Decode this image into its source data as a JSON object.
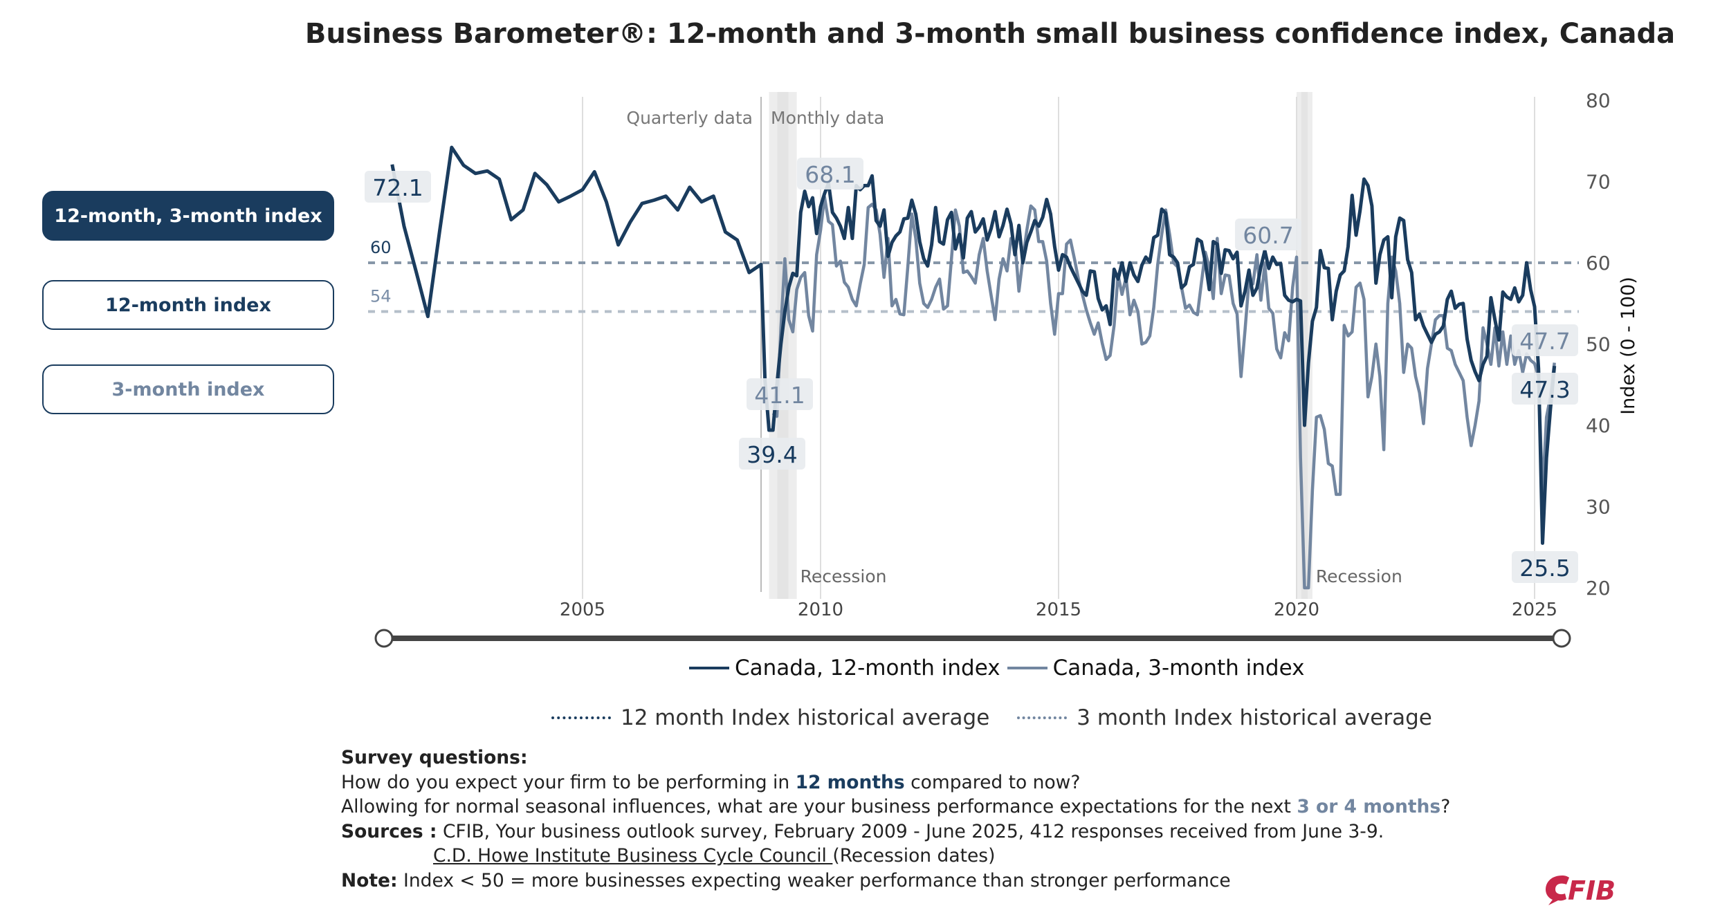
{
  "title": "Business Barometer®: 12-month and 3-month small business confidence index, Canada",
  "buttons": [
    {
      "label": "12-month, 3-month index",
      "active": true
    },
    {
      "label": "12-month index",
      "active": false
    },
    {
      "label": "3-month index",
      "active": false
    }
  ],
  "colors": {
    "dark": "#1a3c5e",
    "light": "#7286a0",
    "label_bg": "#e8ebee",
    "logo": "#c8284a"
  },
  "chart_data": {
    "type": "line",
    "ylabel": "Index (0 - 100)",
    "ylim": [
      20,
      80
    ],
    "yticks": [
      "80",
      "70",
      "60",
      "50",
      "40",
      "30",
      "20"
    ],
    "xticks": [
      "2005",
      "2010",
      "2015",
      "2020",
      "2025"
    ],
    "grid": "vertical",
    "section_labels": {
      "quarterly": "Quarterly data",
      "monthly": "Monthly data",
      "divider": "2008-10"
    },
    "recessions": [
      {
        "label": "Recession",
        "from": "2008-12",
        "to": "2009-07"
      },
      {
        "label": "Recession",
        "from": "2020-01",
        "to": "2020-05"
      }
    ],
    "averages": [
      {
        "name": "12 month Index historical average",
        "value": 60,
        "label": "60"
      },
      {
        "name": "3 month Index historical average",
        "value": 54,
        "label": "54"
      }
    ],
    "series": [
      {
        "name": "Canada, 12-month index",
        "quarterly": {
          "2001": [
            72.1,
            64.5,
            59,
            53.4
          ],
          "2002": [
            64,
            74.2,
            72,
            71
          ],
          "2003": [
            71.3,
            70.3,
            65.3,
            66.5
          ],
          "2004": [
            71,
            69.6,
            67.5,
            68.2
          ],
          "2005": [
            69,
            71.2,
            67.5,
            62.2
          ],
          "2006": [
            65,
            67.3,
            67.7,
            68.2
          ],
          "2007": [
            66.5,
            69.3,
            67.5,
            68.2
          ],
          "2008": [
            63.8,
            62.8,
            58.8,
            59.8
          ]
        },
        "monthly": {
          "2008": [
            null,
            null,
            null,
            null,
            null,
            null,
            null,
            null,
            null,
            null,
            45.5,
            39.4
          ],
          "2009": [
            39.4,
            45,
            50,
            54,
            57,
            58.7,
            58.4,
            66.2,
            68.8,
            66.9,
            68.0,
            63.6
          ],
          "2010": [
            66.9,
            68.5,
            69.8,
            66.2,
            65.5,
            64.5,
            63.0,
            66.8,
            63.0,
            69.5,
            69.0,
            69.5
          ],
          "2011": [
            69.5,
            70.7,
            65.2,
            64.5,
            66.5,
            60.8,
            62.5,
            63.3,
            63.8,
            65.4,
            65.5,
            67.7
          ],
          "2012": [
            66.0,
            62.6,
            60.5,
            59.6,
            62.2,
            66.8,
            62.6,
            62.3,
            65.3,
            66.2,
            61.7,
            63.5
          ],
          "2013": [
            60.6,
            65.5,
            66.3,
            63.8,
            64.4,
            65.4,
            62.8,
            64.2,
            66.3,
            63.2,
            64.6,
            66.6
          ],
          "2014": [
            64.8,
            61.0,
            64.6,
            60.0,
            62.5,
            63.8,
            65.2,
            64.5,
            65.6,
            67.8,
            66.0,
            62.0
          ],
          "2015": [
            59.1,
            61,
            60.7,
            59.5,
            58.5,
            57.5,
            56.5,
            56,
            59,
            58.9,
            55.6,
            54.2
          ],
          "2016": [
            54.7,
            52.4,
            59.2,
            58,
            60,
            57.7,
            60,
            58.5,
            57.7,
            59.7,
            60.7,
            60.1
          ],
          "2017": [
            63.1,
            63.4,
            66.6,
            66.1,
            61,
            60.7,
            60,
            56.9,
            57.4,
            59.5,
            59.8,
            62.9
          ],
          "2018": [
            62.6,
            60.1,
            56.7,
            62.6,
            62.3,
            58.7,
            61.6,
            61.5,
            60.5,
            61.3,
            54.7,
            56.5
          ],
          "2019": [
            59.1,
            56,
            56.9,
            59.5,
            61.5,
            59.3,
            60.7,
            59.8,
            59.9,
            56,
            55.4,
            55.2
          ],
          "2020": [
            55.5,
            55.3,
            40,
            47.7,
            52.8,
            54.5,
            61.5,
            59.4,
            59.3,
            53,
            56.5,
            58.5
          ],
          "2021": [
            59,
            62,
            68.3,
            63.4,
            66.4,
            70.3,
            69.5,
            67,
            57.5,
            61,
            62.8,
            63.2
          ],
          "2022": [
            55.7,
            63.2,
            65.5,
            65.2,
            60.4,
            58.8,
            53,
            53.7,
            52.2,
            51.2,
            50.2,
            51.2
          ],
          "2023": [
            51.5,
            52.2,
            55.5,
            56.5,
            54.4,
            54.9,
            55,
            50.6,
            48,
            46.6,
            45.5,
            47.5
          ],
          "2024": [
            48.5,
            55.7,
            53,
            50.5,
            56.4,
            55.8,
            55.5,
            56.9,
            55.2,
            56,
            60,
            56.7
          ],
          "2025": [
            54.6,
            47,
            25.5,
            36,
            42,
            47.3
          ]
        }
      },
      {
        "name": "Canada, 3-month index",
        "monthly": {
          "2009": [
            41.5,
            41.1,
            52,
            60.5,
            53,
            51.5,
            56.7,
            58.2,
            58.8,
            53.5,
            51.6,
            61
          ],
          "2010": [
            64,
            68.1,
            65.1,
            64.7,
            59.6,
            60.2,
            57.6,
            57,
            55.5,
            54.7,
            57.4,
            59.8
          ],
          "2011": [
            66.8,
            67.2,
            66.5,
            63.5,
            58.2,
            63.0,
            54.7,
            55.5,
            53.7,
            53.6,
            59.5,
            66.0
          ],
          "2012": [
            63.0,
            57.5,
            55.0,
            54.5,
            55.5,
            57.0,
            58.0,
            54.3,
            54.7,
            60.5,
            66.5,
            64.5
          ],
          "2013": [
            58.8,
            59.0,
            58.3,
            57.5,
            61.0,
            63.0,
            59.0,
            56.0,
            53.0,
            58.0,
            60.5,
            59.0
          ],
          "2014": [
            63.0,
            62.5,
            56.5,
            60.5,
            64.0,
            67.0,
            66.5,
            62.6,
            62.6,
            60.2,
            55.0,
            51.2
          ],
          "2015": [
            56.2,
            56.2,
            62.3,
            62.8,
            60.5,
            58,
            56.1,
            54.2,
            52.6,
            51.2,
            52.6,
            50.1
          ],
          "2016": [
            48.1,
            48.6,
            52.3,
            58.5,
            56.1,
            58.2,
            53.6,
            55.4,
            54,
            50,
            50.2,
            51
          ],
          "2017": [
            54.5,
            59.8,
            63.5,
            66.5,
            63.5,
            60,
            59.5,
            57,
            54.4,
            54.8,
            53.9,
            53.6
          ],
          "2018": [
            57.5,
            61.3,
            59.4,
            55.6,
            63,
            56.2,
            58.5,
            58.4,
            55,
            53.7,
            46,
            51.7
          ],
          "2019": [
            57.8,
            57.4,
            61,
            55.4,
            59.8,
            54.4,
            53.8,
            49.4,
            48.3,
            51.4,
            50.4,
            57
          ],
          "2020": [
            60.7,
            36,
            20,
            20,
            32,
            41,
            41.2,
            39.5,
            35.3,
            35,
            31.5,
            31.5
          ],
          "2021": [
            52.3,
            51,
            51.5,
            57,
            57.5,
            55.5,
            43.5,
            46,
            50,
            46,
            37,
            55
          ],
          "2022": [
            60.7,
            59,
            55,
            46.5,
            50,
            49.5,
            46,
            44,
            40.2,
            47,
            50,
            53
          ],
          "2023": [
            53.5,
            53.5,
            49.5,
            49.2,
            47.5,
            46.5,
            45.5,
            41,
            37.5,
            40,
            43,
            52
          ],
          "2024": [
            50,
            47.5,
            52,
            47.3,
            51.5,
            47.5,
            51,
            47.5,
            49.2,
            46.5,
            48.8,
            48.0
          ],
          "2025": [
            47.6,
            46,
            31.5,
            41,
            43.5,
            47.7
          ]
        }
      }
    ],
    "data_labels": [
      {
        "text": "72.1",
        "series": "12-month"
      },
      {
        "text": "68.1",
        "series": "3-month"
      },
      {
        "text": "41.1",
        "series": "3-month"
      },
      {
        "text": "39.4",
        "series": "12-month"
      },
      {
        "text": "60.7",
        "series": "3-month"
      },
      {
        "text": "47.7",
        "series": "3-month"
      },
      {
        "text": "47.3",
        "series": "12-month"
      },
      {
        "text": "25.5",
        "series": "12-month"
      }
    ]
  },
  "legend": {
    "series": [
      "Canada, 12-month index",
      "Canada, 3-month index"
    ],
    "averages": [
      "12 month Index historical average",
      "3 month Index historical average"
    ]
  },
  "notes": {
    "survey_heading": "Survey questions:",
    "q1_pre": "How do you expect your firm to be performing in ",
    "q1_hl": "12 months",
    "q1_post": " compared to now?",
    "q2_pre": "Allowing for normal seasonal influences, what are your business performance expectations for the next ",
    "q2_hl": "3 or 4 months",
    "q2_post": "?",
    "sources_label": "Sources :",
    "sources_text": " CFIB, Your business outlook survey, February 2009 - June 2025, 412 responses received from June 3-9.",
    "sources_link": "C.D. Howe Institute Business Cycle Council ",
    "sources_link_suffix": "(Recession dates)",
    "note_label": "Note:",
    "note_text": " Index < 50 = more businesses expecting weaker performance than stronger performance"
  },
  "logo": {
    "text": "CFIB"
  }
}
